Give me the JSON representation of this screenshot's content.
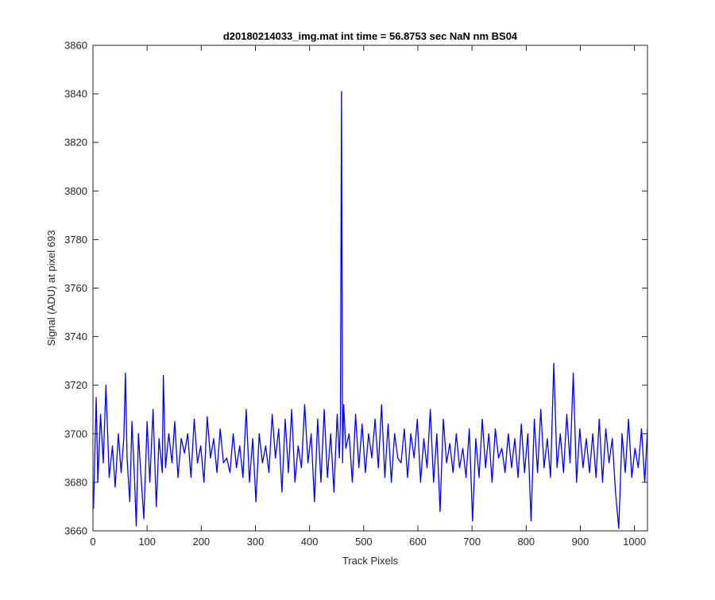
{
  "chart_data": {
    "type": "line",
    "title": "d20180214033_img.mat int time = 56.8753 sec  NaN nm BS04",
    "xlabel": "Track Pixels",
    "ylabel": "Signal (ADU) at pixel 693",
    "xlim": [
      0,
      1024
    ],
    "ylim": [
      3660,
      3860
    ],
    "xticks": [
      0,
      100,
      200,
      300,
      400,
      500,
      600,
      700,
      800,
      900,
      1000
    ],
    "yticks": [
      3660,
      3680,
      3700,
      3720,
      3740,
      3760,
      3780,
      3800,
      3820,
      3840,
      3860
    ],
    "grid": false,
    "series": [
      {
        "color": "#0000ff",
        "note_points": "Noisy signal ~3680-3705 ADU across pixels 1-1024; single spike at pixel 459 to 3841",
        "x": [
          1,
          6,
          9,
          14,
          19,
          24,
          30,
          36,
          41,
          47,
          52,
          57,
          60,
          63,
          68,
          72,
          77,
          80,
          84,
          88,
          94,
          100,
          105,
          111,
          117,
          122,
          128,
          130,
          134,
          140,
          146,
          151,
          157,
          163,
          169,
          175,
          181,
          187,
          193,
          199,
          205,
          211,
          217,
          223,
          229,
          235,
          241,
          247,
          253,
          259,
          265,
          271,
          277,
          283,
          289,
          295,
          301,
          307,
          313,
          319,
          325,
          331,
          337,
          343,
          349,
          355,
          361,
          367,
          373,
          379,
          385,
          391,
          397,
          403,
          409,
          415,
          421,
          427,
          433,
          439,
          445,
          451,
          455,
          457,
          459,
          461,
          463,
          467,
          473,
          479,
          485,
          491,
          497,
          503,
          509,
          515,
          521,
          527,
          533,
          539,
          545,
          551,
          557,
          563,
          569,
          575,
          581,
          587,
          593,
          599,
          605,
          611,
          617,
          623,
          629,
          635,
          641,
          647,
          653,
          659,
          665,
          671,
          677,
          683,
          689,
          695,
          701,
          707,
          713,
          719,
          725,
          731,
          737,
          743,
          749,
          755,
          761,
          767,
          773,
          779,
          785,
          791,
          797,
          803,
          809,
          815,
          821,
          827,
          833,
          839,
          845,
          851,
          857,
          863,
          869,
          875,
          881,
          887,
          893,
          899,
          905,
          911,
          917,
          923,
          929,
          935,
          941,
          947,
          953,
          959,
          965,
          971,
          977,
          983,
          989,
          995,
          1001,
          1007,
          1013,
          1019,
          1024
        ],
        "y": [
          3669,
          3715,
          3680,
          3708,
          3688,
          3720,
          3682,
          3695,
          3678,
          3700,
          3684,
          3698,
          3725,
          3690,
          3672,
          3705,
          3680,
          3662,
          3700,
          3685,
          3665,
          3705,
          3680,
          3710,
          3670,
          3698,
          3684,
          3724,
          3686,
          3700,
          3688,
          3705,
          3682,
          3698,
          3692,
          3700,
          3682,
          3706,
          3688,
          3695,
          3680,
          3707,
          3690,
          3698,
          3684,
          3702,
          3688,
          3690,
          3684,
          3700,
          3686,
          3695,
          3682,
          3710,
          3680,
          3698,
          3672,
          3700,
          3688,
          3695,
          3684,
          3708,
          3690,
          3702,
          3676,
          3706,
          3684,
          3710,
          3680,
          3695,
          3686,
          3712,
          3688,
          3700,
          3672,
          3706,
          3680,
          3710,
          3682,
          3700,
          3676,
          3708,
          3690,
          3706,
          3841,
          3688,
          3712,
          3694,
          3700,
          3680,
          3708,
          3686,
          3704,
          3684,
          3700,
          3690,
          3706,
          3686,
          3712,
          3682,
          3704,
          3680,
          3700,
          3690,
          3688,
          3702,
          3682,
          3700,
          3690,
          3706,
          3680,
          3698,
          3686,
          3710,
          3680,
          3700,
          3668,
          3706,
          3688,
          3696,
          3684,
          3700,
          3686,
          3694,
          3682,
          3702,
          3664,
          3698,
          3682,
          3706,
          3686,
          3700,
          3680,
          3702,
          3690,
          3694,
          3684,
          3700,
          3686,
          3698,
          3682,
          3704,
          3684,
          3700,
          3664,
          3706,
          3684,
          3710,
          3686,
          3698,
          3682,
          3729,
          3686,
          3700,
          3684,
          3708,
          3688,
          3725,
          3680,
          3702,
          3686,
          3698,
          3684,
          3700,
          3682,
          3706,
          3680,
          3702,
          3688,
          3698,
          3676,
          3661,
          3700,
          3684,
          3706,
          3682,
          3694,
          3686,
          3702,
          3680,
          3702
        ]
      }
    ]
  }
}
